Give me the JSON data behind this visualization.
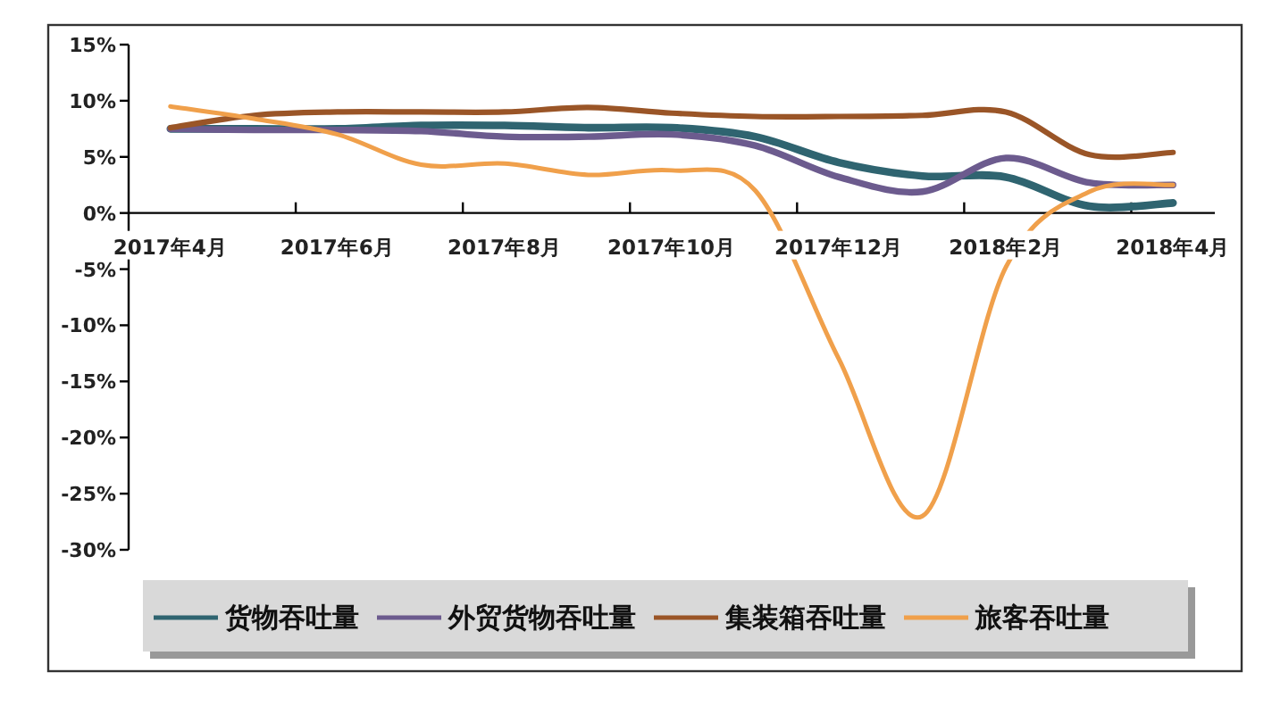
{
  "chart_data": {
    "type": "line",
    "categories": [
      "2017年4月",
      null,
      "2017年6月",
      null,
      "2017年8月",
      null,
      "2017年10月",
      null,
      "2017年12月",
      null,
      "2018年2月",
      null,
      "2018年4月"
    ],
    "series": [
      {
        "name": "货物吞吐量",
        "color": "#2f6470",
        "values": [
          7.5,
          7.5,
          7.5,
          7.8,
          7.8,
          7.6,
          7.6,
          6.8,
          4.5,
          3.3,
          3.2,
          0.6,
          0.9
        ]
      },
      {
        "name": "外贸货物吞吐量",
        "color": "#6c5b8e",
        "values": [
          7.5,
          7.4,
          7.4,
          7.3,
          6.8,
          6.8,
          7.0,
          6.0,
          3.2,
          1.9,
          4.9,
          2.7,
          2.5
        ]
      },
      {
        "name": "集装箱吞吐量",
        "color": "#9a5527",
        "values": [
          7.6,
          8.7,
          9.0,
          9.0,
          9.0,
          9.4,
          8.9,
          8.6,
          8.6,
          8.7,
          9.0,
          5.2,
          5.4
        ]
      },
      {
        "name": "旅客吞吐量",
        "color": "#f0a04b",
        "values": [
          9.5,
          8.4,
          7.0,
          4.3,
          4.4,
          3.4,
          3.8,
          2.0,
          -13,
          -27,
          -4.8,
          1.9,
          2.5
        ]
      }
    ],
    "ylim": [
      -30,
      15
    ],
    "yticks": [
      {
        "value": -30,
        "label": "-30%"
      },
      {
        "value": -25,
        "label": "-25%"
      },
      {
        "value": -20,
        "label": "-20%"
      },
      {
        "value": -15,
        "label": "-15%"
      },
      {
        "value": -10,
        "label": "-10%"
      },
      {
        "value": -5,
        "label": "-5%"
      },
      {
        "value": 0,
        "label": "0%"
      },
      {
        "value": 5,
        "label": "5%"
      },
      {
        "value": 10,
        "label": "10%"
      },
      {
        "value": 15,
        "label": "15%"
      }
    ],
    "legend": "bottom"
  }
}
